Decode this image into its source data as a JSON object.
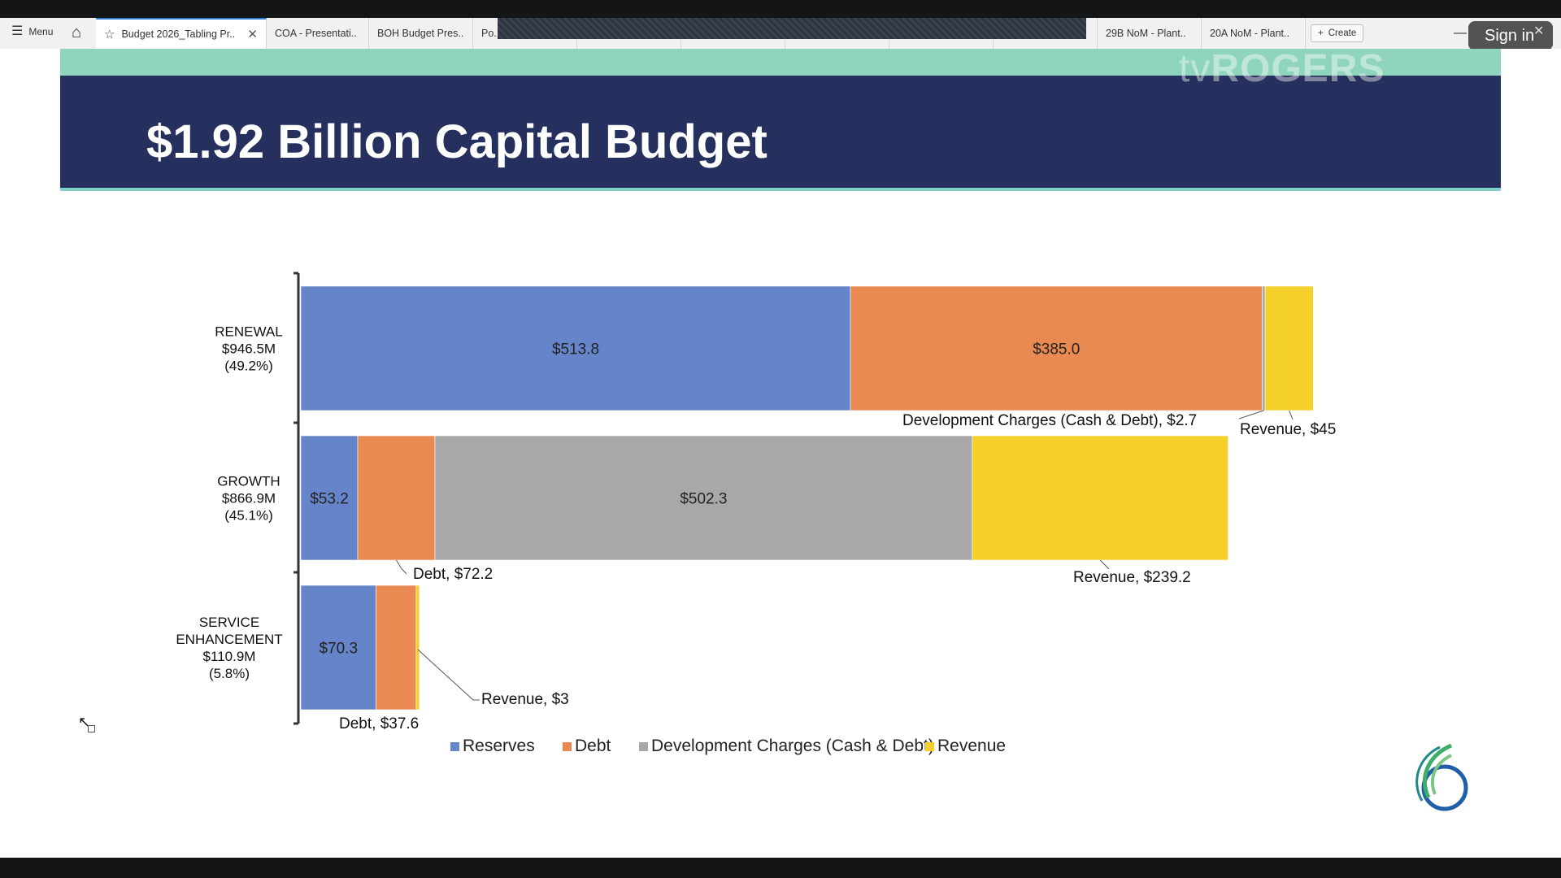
{
  "browser": {
    "menu_label": "Menu",
    "tabs": [
      {
        "label": "Budget 2026_Tabling Pr..",
        "active": true
      },
      {
        "label": "COA - Presentati.."
      },
      {
        "label": "BOH Budget Pres.."
      },
      {
        "label": "Po..."
      },
      {
        "label": ""
      },
      {
        "label": ""
      },
      {
        "label": ""
      },
      {
        "label": ""
      },
      {
        "label": ""
      },
      {
        "label": "29B NoM - Plant.."
      },
      {
        "label": "20A NoM - Plant.."
      }
    ],
    "create_label": "Create",
    "sign_in_label": "Sign in"
  },
  "broadcast": {
    "watermark_prefix": "tv",
    "watermark_brand": "ROGERS"
  },
  "slide": {
    "title": "$1.92 Billion Capital Budget"
  },
  "colors": {
    "reserves": "#6684c9",
    "debt": "#e98a53",
    "dev_charges": "#a8a8a8",
    "revenue": "#f5cf2a",
    "title_band": "#26305e",
    "teal": "#8fd5bd"
  },
  "icons": [
    "menu-icon",
    "home-icon",
    "star-icon",
    "close-icon",
    "plus-icon",
    "minimize-icon",
    "city-logo-icon"
  ],
  "chart_data": {
    "type": "bar",
    "orientation": "horizontal-stacked",
    "categories": [
      {
        "lines": [
          "RENEWAL",
          "$946.5M",
          "(49.2%)"
        ]
      },
      {
        "lines": [
          "GROWTH",
          "$866.9M",
          "(45.1%)"
        ]
      },
      {
        "lines": [
          "SERVICE",
          "ENHANCEMENT",
          "$110.9M",
          "(5.8%)"
        ]
      }
    ],
    "series": [
      {
        "name": "Reserves",
        "color_key": "reserves",
        "values": [
          513.8,
          53.2,
          70.3
        ],
        "labels": [
          "$513.8",
          "$53.2",
          "$70.3"
        ]
      },
      {
        "name": "Debt",
        "color_key": "debt",
        "values": [
          385.0,
          72.2,
          37.6
        ],
        "labels": [
          "$385.0",
          "",
          ""
        ]
      },
      {
        "name": "Development Charges (Cash & Debt)",
        "color_key": "dev_charges",
        "values": [
          2.7,
          502.3,
          0
        ],
        "labels": [
          "",
          "$502.3",
          ""
        ]
      },
      {
        "name": "Revenue",
        "color_key": "revenue",
        "values": [
          45,
          239.2,
          3
        ],
        "labels": [
          "",
          "",
          ""
        ]
      }
    ],
    "callouts": [
      {
        "category": 0,
        "series": 2,
        "text": "Development Charges (Cash & Debt),  $2.7"
      },
      {
        "category": 0,
        "series": 3,
        "text": "Revenue,  $45"
      },
      {
        "category": 1,
        "series": 1,
        "text": "Debt,  $72.2"
      },
      {
        "category": 1,
        "series": 3,
        "text": "Revenue,  $239.2"
      },
      {
        "category": 2,
        "series": 3,
        "text": "Revenue,  $3"
      },
      {
        "category": 2,
        "series": 1,
        "text": "Debt,  $37.6"
      }
    ],
    "xlim": [
      0,
      950
    ],
    "grid": false,
    "legend_position": "bottom"
  }
}
